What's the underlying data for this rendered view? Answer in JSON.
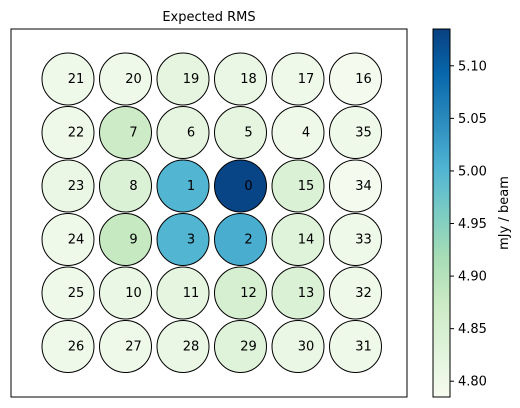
{
  "chart_data": {
    "type": "heatmap",
    "title": "Expected RMS",
    "colorbar": {
      "label": "mJy / beam",
      "min": 4.785,
      "max": 5.135,
      "ticks": [
        "4.80",
        "4.85",
        "4.90",
        "4.95",
        "5.00",
        "5.05",
        "5.10"
      ],
      "colormap": "GnBu"
    },
    "grid": false,
    "cells": [
      {
        "label": "21",
        "row": 0,
        "col": 0,
        "value": 4.8
      },
      {
        "label": "20",
        "row": 0,
        "col": 1,
        "value": 4.8
      },
      {
        "label": "19",
        "row": 0,
        "col": 2,
        "value": 4.82
      },
      {
        "label": "18",
        "row": 0,
        "col": 3,
        "value": 4.81
      },
      {
        "label": "17",
        "row": 0,
        "col": 4,
        "value": 4.8
      },
      {
        "label": "16",
        "row": 0,
        "col": 5,
        "value": 4.79
      },
      {
        "label": "22",
        "row": 1,
        "col": 0,
        "value": 4.8
      },
      {
        "label": "7",
        "row": 1,
        "col": 1,
        "value": 4.87
      },
      {
        "label": "6",
        "row": 1,
        "col": 2,
        "value": 4.82
      },
      {
        "label": "5",
        "row": 1,
        "col": 3,
        "value": 4.82
      },
      {
        "label": "4",
        "row": 1,
        "col": 4,
        "value": 4.8
      },
      {
        "label": "35",
        "row": 1,
        "col": 5,
        "value": 4.8
      },
      {
        "label": "23",
        "row": 2,
        "col": 0,
        "value": 4.81
      },
      {
        "label": "8",
        "row": 2,
        "col": 1,
        "value": 4.84
      },
      {
        "label": "1",
        "row": 2,
        "col": 2,
        "value": 5.0
      },
      {
        "label": "0",
        "row": 2,
        "col": 3,
        "value": 5.13
      },
      {
        "label": "15",
        "row": 2,
        "col": 4,
        "value": 4.84
      },
      {
        "label": "34",
        "row": 2,
        "col": 5,
        "value": 4.79
      },
      {
        "label": "24",
        "row": 3,
        "col": 0,
        "value": 4.8
      },
      {
        "label": "9",
        "row": 3,
        "col": 1,
        "value": 4.88
      },
      {
        "label": "3",
        "row": 3,
        "col": 2,
        "value": 5.0
      },
      {
        "label": "2",
        "row": 3,
        "col": 3,
        "value": 5.01
      },
      {
        "label": "14",
        "row": 3,
        "col": 4,
        "value": 4.83
      },
      {
        "label": "33",
        "row": 3,
        "col": 5,
        "value": 4.8
      },
      {
        "label": "25",
        "row": 4,
        "col": 0,
        "value": 4.8
      },
      {
        "label": "10",
        "row": 4,
        "col": 1,
        "value": 4.81
      },
      {
        "label": "11",
        "row": 4,
        "col": 2,
        "value": 4.82
      },
      {
        "label": "12",
        "row": 4,
        "col": 3,
        "value": 4.85
      },
      {
        "label": "13",
        "row": 4,
        "col": 4,
        "value": 4.84
      },
      {
        "label": "32",
        "row": 4,
        "col": 5,
        "value": 4.8
      },
      {
        "label": "26",
        "row": 5,
        "col": 0,
        "value": 4.8
      },
      {
        "label": "27",
        "row": 5,
        "col": 1,
        "value": 4.8
      },
      {
        "label": "28",
        "row": 5,
        "col": 2,
        "value": 4.81
      },
      {
        "label": "29",
        "row": 5,
        "col": 3,
        "value": 4.83
      },
      {
        "label": "30",
        "row": 5,
        "col": 4,
        "value": 4.81
      },
      {
        "label": "31",
        "row": 5,
        "col": 5,
        "value": 4.8
      }
    ]
  }
}
